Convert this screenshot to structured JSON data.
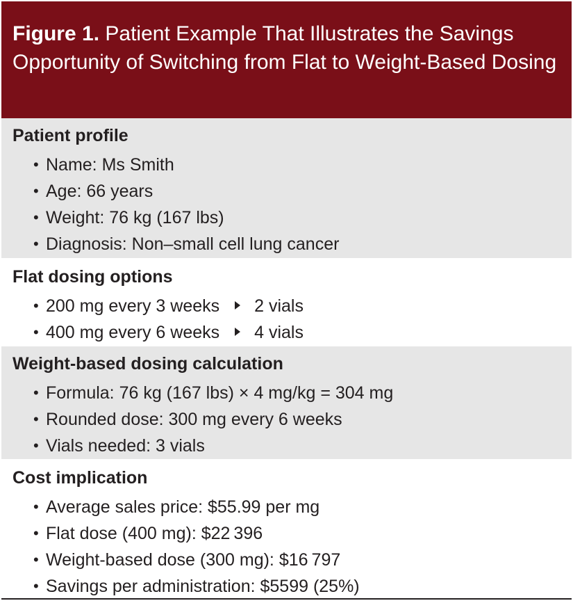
{
  "header": {
    "label": "Figure 1.",
    "title": "Patient Example That Illustrates the Savings Opportunity of Switching from Flat to Weight-Based Dosing"
  },
  "sections": {
    "patient_profile": {
      "title": "Patient profile",
      "items": [
        "Name: Ms Smith",
        "Age: 66 years",
        "Weight: 76 kg (167 lbs)",
        "Diagnosis: Non–small cell lung cancer"
      ]
    },
    "flat_dosing": {
      "title": "Flat dosing options",
      "items": [
        {
          "dose": "200 mg every 3 weeks",
          "vials": "2 vials"
        },
        {
          "dose": "400 mg every 6 weeks",
          "vials": "4 vials"
        }
      ]
    },
    "weight_based": {
      "title": "Weight-based dosing calculation",
      "items": [
        "Formula: 76 kg (167 lbs) × 4 mg/kg = 304 mg",
        "Rounded dose: 300 mg every 6 weeks",
        "Vials needed: 3 vials"
      ]
    },
    "cost": {
      "title": "Cost implication",
      "items": [
        "Average sales price: $55.99 per mg",
        "Flat dose (400 mg): $22 396",
        "Weight-based dose (300 mg): $16 797",
        "Savings per administration: $5599 (25%)"
      ]
    }
  },
  "colors": {
    "header_background": "#7a0f18",
    "shaded_background": "#e6e6e6",
    "text": "#231f20"
  },
  "icons": {
    "arrow": "right-triangle-arrow-icon"
  }
}
